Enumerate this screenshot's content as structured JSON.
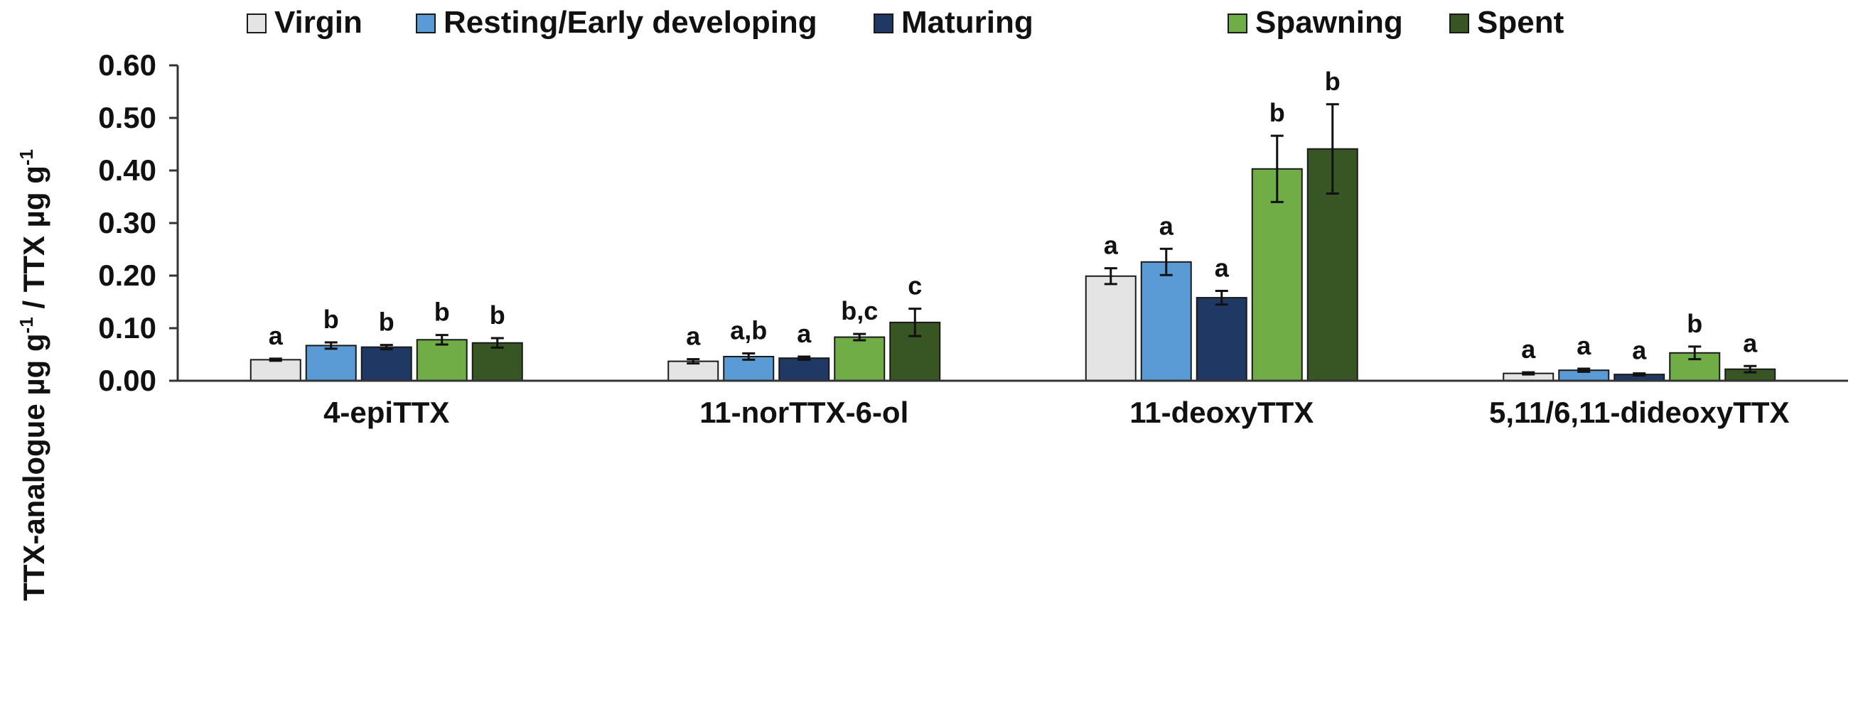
{
  "chart_data": {
    "type": "bar",
    "title": "",
    "xlabel": "",
    "ylabel": {
      "parts": [
        {
          "text": "TTX-analogue µg g",
          "sup": false
        },
        {
          "text": "-1",
          "sup": true
        },
        {
          "text": " / TTX µg g",
          "sup": false
        },
        {
          "text": "-1",
          "sup": true
        }
      ]
    },
    "ylim": [
      0,
      0.6
    ],
    "yticks": [
      {
        "value": 0.0,
        "label": "0.00"
      },
      {
        "value": 0.1,
        "label": "0.10"
      },
      {
        "value": 0.2,
        "label": "0.20"
      },
      {
        "value": 0.3,
        "label": "0.30"
      },
      {
        "value": 0.4,
        "label": "0.40"
      },
      {
        "value": 0.5,
        "label": "0.50"
      },
      {
        "value": 0.6,
        "label": "0.60"
      }
    ],
    "grid": false,
    "legend_position": "top",
    "categories": [
      "4-epiTTX",
      "11-norTTX-6-ol",
      "11-deoxyTTX",
      "5,11/6,11-dideoxyTTX"
    ],
    "series": [
      {
        "name": "Virgin",
        "color": "#e4e4e4",
        "values": [
          0.04,
          0.037,
          0.199,
          0.014
        ],
        "errors": [
          0.002,
          0.004,
          0.015,
          0.002
        ],
        "labels": [
          "a",
          "a",
          "a",
          "a"
        ]
      },
      {
        "name": "Resting/Early developing",
        "color": "#5b9bd5",
        "values": [
          0.067,
          0.046,
          0.226,
          0.02
        ],
        "errors": [
          0.006,
          0.006,
          0.025,
          0.003
        ],
        "labels": [
          "b",
          "a,b",
          "a",
          "a"
        ]
      },
      {
        "name": "Maturing",
        "color": "#1f3864",
        "values": [
          0.064,
          0.043,
          0.158,
          0.012
        ],
        "errors": [
          0.004,
          0.003,
          0.013,
          0.002
        ],
        "labels": [
          "b",
          "a",
          "a",
          "a"
        ]
      },
      {
        "name": "Spawning",
        "color": "#70ad47",
        "values": [
          0.078,
          0.083,
          0.403,
          0.053
        ],
        "errors": [
          0.009,
          0.006,
          0.063,
          0.012
        ],
        "labels": [
          "b",
          "b,c",
          "b",
          "b"
        ]
      },
      {
        "name": "Spent",
        "color": "#375623",
        "values": [
          0.072,
          0.111,
          0.441,
          0.022
        ],
        "errors": [
          0.009,
          0.026,
          0.085,
          0.006
        ],
        "labels": [
          "b",
          "c",
          "b",
          "a"
        ]
      }
    ]
  }
}
